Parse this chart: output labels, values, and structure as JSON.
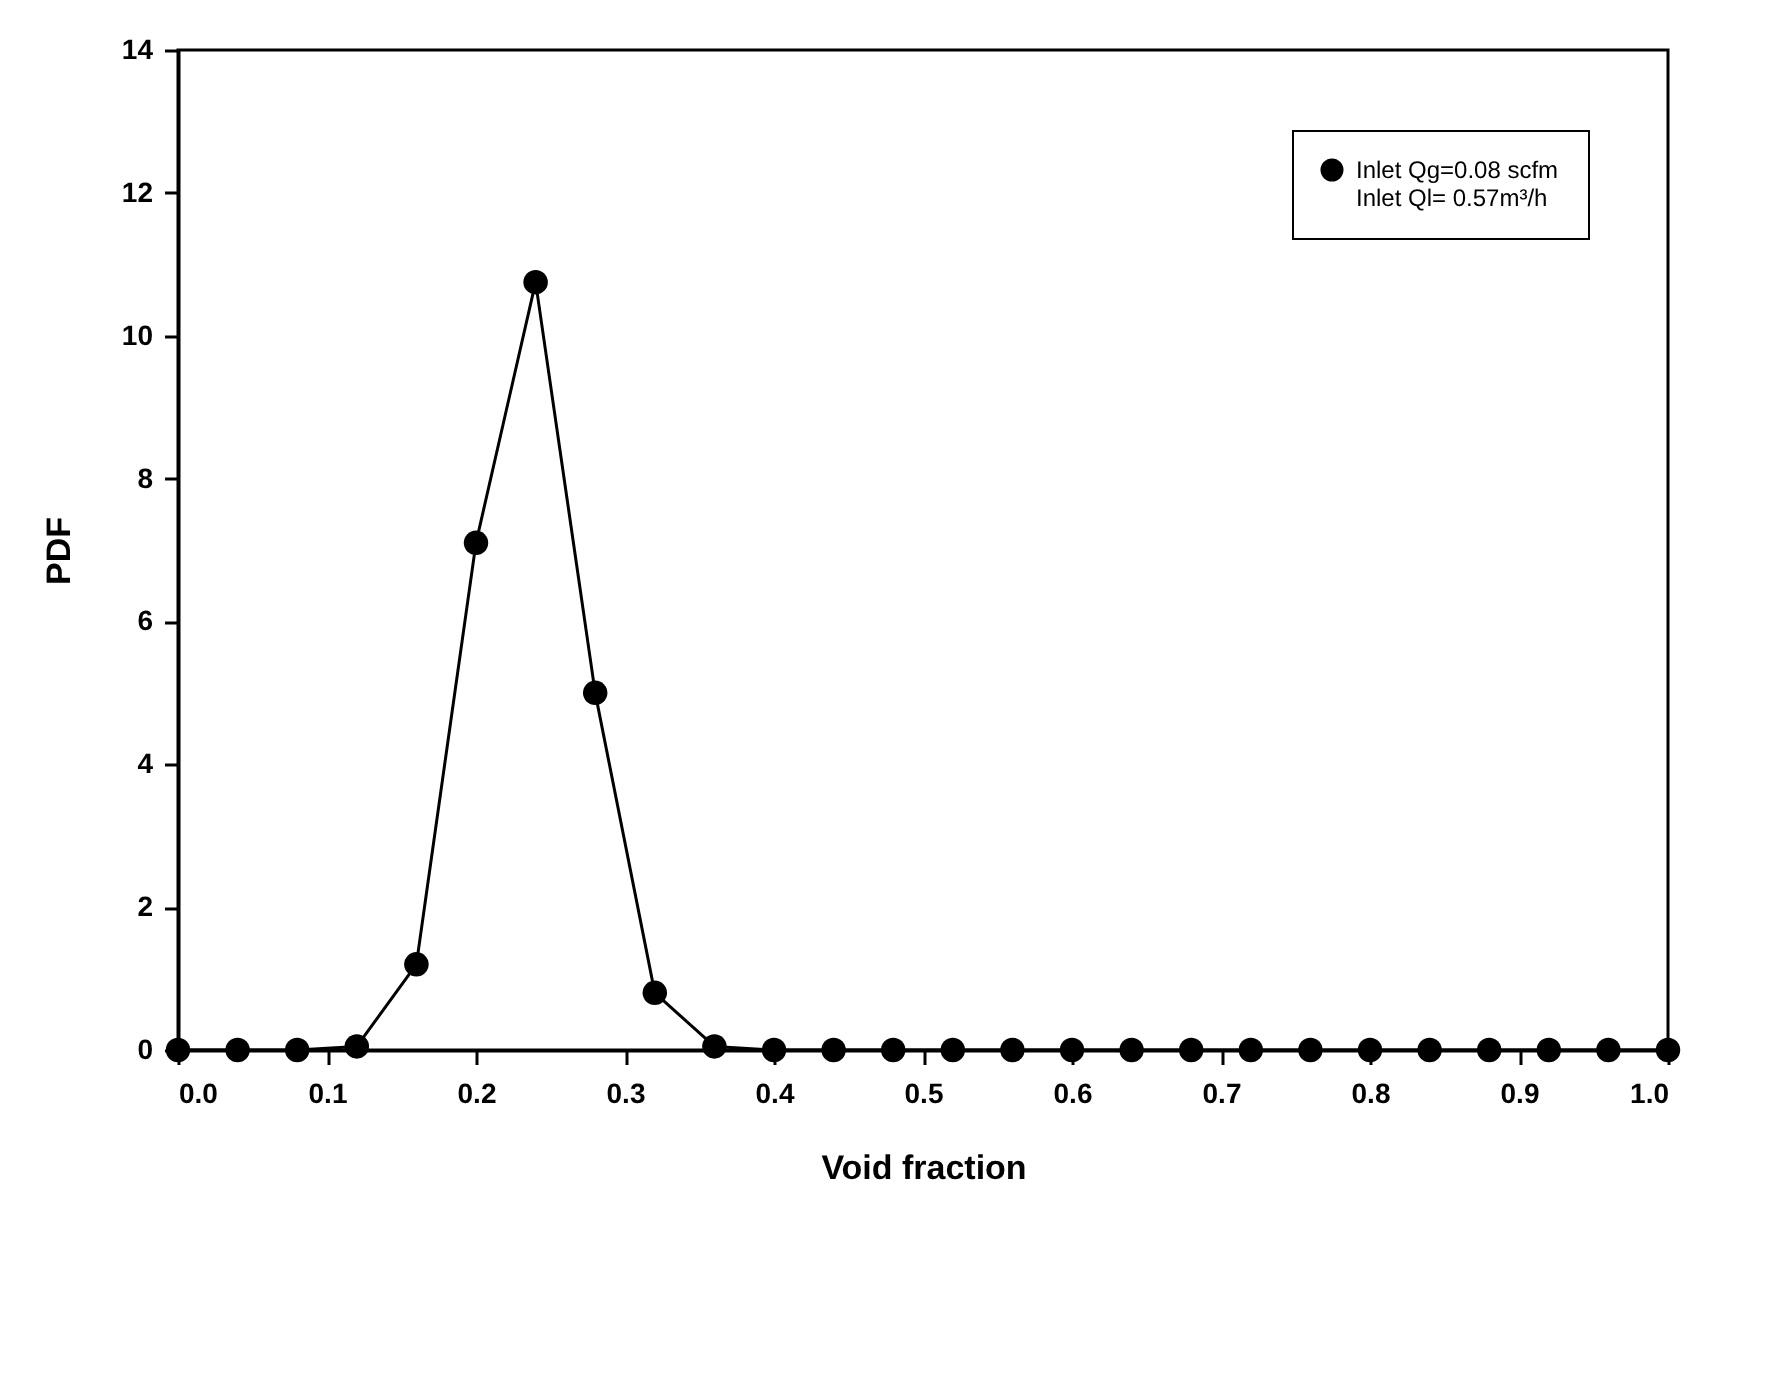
{
  "chart_data": {
    "type": "line",
    "xlabel": "Void fraction",
    "ylabel": "PDF",
    "x": [
      0,
      0.04,
      0.08,
      0.12,
      0.16,
      0.2,
      0.24,
      0.28,
      0.32,
      0.36,
      0.4,
      0.44,
      0.48,
      0.52,
      0.56,
      0.6,
      0.64,
      0.68,
      0.72,
      0.76,
      0.8,
      0.84,
      0.88,
      0.92,
      0.96,
      1.0
    ],
    "series": [
      {
        "name": "Inlet Qg=0.08 scfm",
        "color": "#000000",
        "values": [
          0,
          0,
          0,
          0.05,
          1.2,
          7.1,
          10.75,
          5.0,
          0.8,
          0.05,
          0,
          0,
          0,
          0,
          0,
          0,
          0,
          0,
          0,
          0,
          0,
          0,
          0,
          0,
          0,
          0
        ]
      }
    ],
    "annotations": [
      "Inlet Ql= 0.57m³/h"
    ],
    "xlim": [
      0,
      1.0
    ],
    "ylim": [
      0,
      14
    ],
    "xticks": [
      {
        "value": 0,
        "label": "0.0"
      },
      0.1,
      0.2,
      0.3,
      0.4,
      0.5,
      0.6,
      0.7,
      0.8,
      0.9,
      {
        "value": 1.0,
        "label": "1.0"
      }
    ],
    "yticks": [
      0,
      2,
      4,
      6,
      8,
      10,
      12,
      14
    ],
    "grid": false,
    "legend": "top right",
    "marker": "circle",
    "line_style": "solid"
  }
}
